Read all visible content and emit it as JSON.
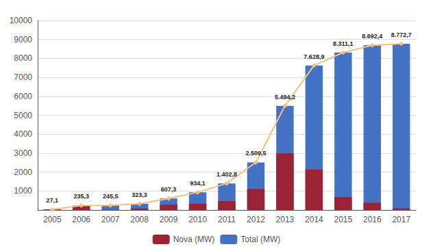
{
  "chart_data": {
    "type": "bar",
    "categories": [
      "2005",
      "2006",
      "2007",
      "2008",
      "2009",
      "2010",
      "2011",
      "2012",
      "2013",
      "2014",
      "2015",
      "2016",
      "2017"
    ],
    "series": [
      {
        "name": "Nova (MW)",
        "type": "bar",
        "color": "#9B2335",
        "values": [
          27.1,
          208.2,
          10.2,
          77.8,
          284.0,
          326.8,
          468.7,
          1106.7,
          2984.7,
          2134.7,
          682.2,
          381.3,
          80.3
        ]
      },
      {
        "name": "Total (MW)",
        "type": "bar",
        "color": "#4472C4",
        "values": [
          27.1,
          235.3,
          245.5,
          323.3,
          607.3,
          934.1,
          1402.8,
          2509.5,
          5494.2,
          7628.9,
          8311.1,
          8692.4,
          8772.7
        ]
      },
      {
        "type": "line",
        "color": "#F5C07A",
        "marker": "diamond",
        "data_labels": true,
        "values": [
          27.1,
          235.3,
          245.5,
          323.3,
          607.3,
          934.1,
          1402.8,
          2509.5,
          5494.2,
          7628.9,
          8311.1,
          8692.4,
          8772.7
        ],
        "value_labels": [
          "27,1",
          "235,3",
          "245,5",
          "323,3",
          "607,3",
          "934,1",
          "1.402,8",
          "2.509,5",
          "5.494,2",
          "7.628,9",
          "8.311,1",
          "8.692,4",
          "8.772,7"
        ]
      }
    ],
    "ylim": [
      0,
      10000
    ],
    "yticks": [
      1000,
      2000,
      3000,
      4000,
      5000,
      6000,
      7000,
      8000,
      9000,
      10000
    ],
    "grid": true,
    "legend": "bottom"
  }
}
